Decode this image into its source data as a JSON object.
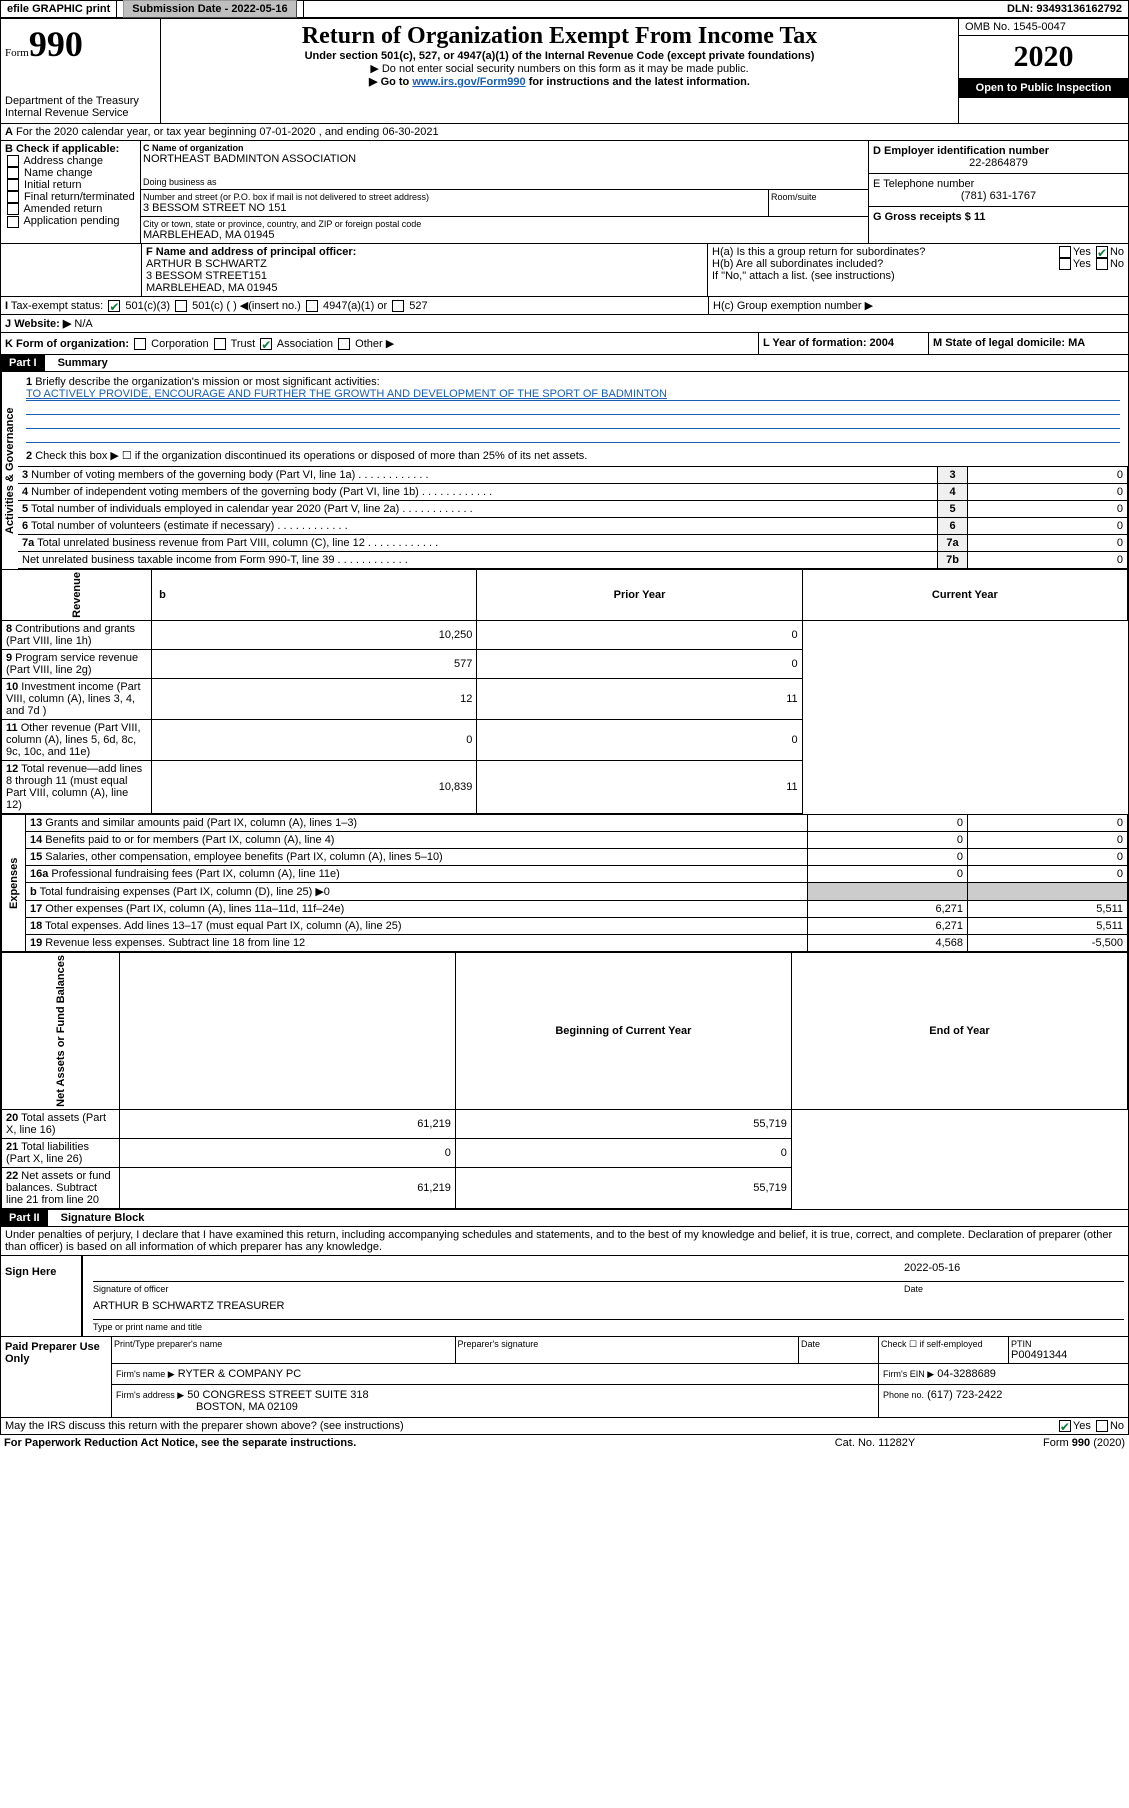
{
  "header": {
    "efile": "efile GRAPHIC print",
    "submission_label": "Submission Date - 2022-05-16",
    "dln": "DLN: 93493136162792"
  },
  "form": {
    "form_label": "Form",
    "form_num": "990",
    "title": "Return of Organization Exempt From Income Tax",
    "subtitle": "Under section 501(c), 527, or 4947(a)(1) of the Internal Revenue Code (except private foundations)",
    "warn1": "▶ Do not enter social security numbers on this form as it may be made public.",
    "warn2_pre": "▶ Go to ",
    "warn2_link": "www.irs.gov/Form990",
    "warn2_post": " for instructions and the latest information.",
    "dept": "Department of the Treasury",
    "irs": "Internal Revenue Service",
    "omb": "OMB No. 1545-0047",
    "year": "2020",
    "open_public": "Open to Public Inspection"
  },
  "A": {
    "line": "For the 2020 calendar year, or tax year beginning 07-01-2020    , and ending 06-30-2021"
  },
  "B": {
    "label": "B Check if applicable:",
    "opts": [
      "Address change",
      "Name change",
      "Initial return",
      "Final return/terminated",
      "Amended return",
      "Application pending"
    ]
  },
  "C": {
    "name_label": "C Name of organization",
    "name": "NORTHEAST BADMINTON ASSOCIATION",
    "dba_label": "Doing business as",
    "street_label": "Number and street (or P.O. box if mail is not delivered to street address)",
    "room": "Room/suite",
    "street": "3 BESSOM STREET NO 151",
    "city_label": "City or town, state or province, country, and ZIP or foreign postal code",
    "city": "MARBLEHEAD, MA  01945"
  },
  "D": {
    "label": "D Employer identification number",
    "val": "22-2864879"
  },
  "E": {
    "label": "E Telephone number",
    "val": "(781) 631-1767"
  },
  "G": {
    "label": "G Gross receipts $ 11"
  },
  "F": {
    "label": "F  Name and address of principal officer:",
    "name": "ARTHUR B SCHWARTZ",
    "street": "3 BESSOM STREET151",
    "city": "MARBLEHEAD, MA  01945"
  },
  "H": {
    "a": "H(a)  Is this a group return for subordinates?",
    "b": "H(b)  Are all subordinates included?",
    "note": "If \"No,\" attach a list. (see instructions)",
    "c": "H(c)  Group exemption number ▶"
  },
  "I": {
    "label": "I",
    "text": "Tax-exempt status:",
    "opts": [
      "501(c)(3)",
      "501(c) (  ) ◀(insert no.)",
      "4947(a)(1) or",
      "527"
    ]
  },
  "J": {
    "label": "J",
    "text": "Website: ▶",
    "val": "N/A"
  },
  "K": {
    "label": "K Form of organization:",
    "opts": [
      "Corporation",
      "Trust",
      "Association",
      "Other ▶"
    ]
  },
  "L": {
    "label": "L Year of formation: 2004"
  },
  "M": {
    "label": "M State of legal domicile: MA"
  },
  "part1": {
    "header": "Part I",
    "title": "Summary",
    "line1": "Briefly describe the organization's mission or most significant activities:",
    "mission": "TO ACTIVELY PROVIDE, ENCOURAGE AND FURTHER THE GROWTH AND DEVELOPMENT OF THE SPORT OF BADMINTON",
    "line2": "Check this box ▶ ☐  if the organization discontinued its operations or disposed of more than 25% of its net assets.",
    "rows_top": [
      {
        "n": "3",
        "label": "Number of voting members of the governing body (Part VI, line 1a)",
        "box": "3",
        "val": "0"
      },
      {
        "n": "4",
        "label": "Number of independent voting members of the governing body (Part VI, line 1b)",
        "box": "4",
        "val": "0"
      },
      {
        "n": "5",
        "label": "Total number of individuals employed in calendar year 2020 (Part V, line 2a)",
        "box": "5",
        "val": "0"
      },
      {
        "n": "6",
        "label": "Total number of volunteers (estimate if necessary)",
        "box": "6",
        "val": "0"
      },
      {
        "n": "7a",
        "label": "Total unrelated business revenue from Part VIII, column (C), line 12",
        "box": "7a",
        "val": "0"
      },
      {
        "n": "",
        "label": "Net unrelated business taxable income from Form 990-T, line 39",
        "box": "7b",
        "val": "0"
      }
    ],
    "col_b": "b",
    "prior": "Prior Year",
    "current": "Current Year",
    "begin": "Beginning of Current Year",
    "end": "End of Year",
    "rev_rows": [
      {
        "n": "8",
        "label": "Contributions and grants (Part VIII, line 1h)",
        "py": "10,250",
        "cy": "0"
      },
      {
        "n": "9",
        "label": "Program service revenue (Part VIII, line 2g)",
        "py": "577",
        "cy": "0"
      },
      {
        "n": "10",
        "label": "Investment income (Part VIII, column (A), lines 3, 4, and 7d )",
        "py": "12",
        "cy": "11"
      },
      {
        "n": "11",
        "label": "Other revenue (Part VIII, column (A), lines 5, 6d, 8c, 9c, 10c, and 11e)",
        "py": "0",
        "cy": "0"
      },
      {
        "n": "12",
        "label": "Total revenue—add lines 8 through 11 (must equal Part VIII, column (A), line 12)",
        "py": "10,839",
        "cy": "11"
      }
    ],
    "exp_rows": [
      {
        "n": "13",
        "label": "Grants and similar amounts paid (Part IX, column (A), lines 1–3)",
        "py": "0",
        "cy": "0"
      },
      {
        "n": "14",
        "label": "Benefits paid to or for members (Part IX, column (A), line 4)",
        "py": "0",
        "cy": "0"
      },
      {
        "n": "15",
        "label": "Salaries, other compensation, employee benefits (Part IX, column (A), lines 5–10)",
        "py": "0",
        "cy": "0"
      },
      {
        "n": "16a",
        "label": "Professional fundraising fees (Part IX, column (A), line 11e)",
        "py": "0",
        "cy": "0"
      },
      {
        "n": "b",
        "label": "Total fundraising expenses (Part IX, column (D), line 25) ▶0",
        "py": "",
        "cy": "",
        "gray": true
      },
      {
        "n": "17",
        "label": "Other expenses (Part IX, column (A), lines 11a–11d, 11f–24e)",
        "py": "6,271",
        "cy": "5,511"
      },
      {
        "n": "18",
        "label": "Total expenses. Add lines 13–17 (must equal Part IX, column (A), line 25)",
        "py": "6,271",
        "cy": "5,511"
      },
      {
        "n": "19",
        "label": "Revenue less expenses. Subtract line 18 from line 12",
        "py": "4,568",
        "cy": "-5,500"
      }
    ],
    "net_rows": [
      {
        "n": "20",
        "label": "Total assets (Part X, line 16)",
        "py": "61,219",
        "cy": "55,719"
      },
      {
        "n": "21",
        "label": "Total liabilities (Part X, line 26)",
        "py": "0",
        "cy": "0"
      },
      {
        "n": "22",
        "label": "Net assets or fund balances. Subtract line 21 from line 20",
        "py": "61,219",
        "cy": "55,719"
      }
    ],
    "vert_gov": "Activities & Governance",
    "vert_rev": "Revenue",
    "vert_exp": "Expenses",
    "vert_net": "Net Assets or Fund Balances"
  },
  "part2": {
    "header": "Part II",
    "title": "Signature Block",
    "penalty": "Under penalties of perjury, I declare that I have examined this return, including accompanying schedules and statements, and to the best of my knowledge and belief, it is true, correct, and complete. Declaration of preparer (other than officer) is based on all information of which preparer has any knowledge.",
    "sign_here": "Sign Here",
    "sig_officer": "Signature of officer",
    "date": "Date",
    "date_val": "2022-05-16",
    "officer": "ARTHUR B SCHWARTZ  TREASURER",
    "type_name": "Type or print name and title",
    "paid": "Paid Preparer Use Only",
    "prep_name_label": "Print/Type preparer's name",
    "prep_sig_label": "Preparer's signature",
    "check_self": "Check ☐ if self-employed",
    "ptin_label": "PTIN",
    "ptin": "P00491344",
    "firm_name_label": "Firm's name   ▶",
    "firm_name": "RYTER & COMPANY PC",
    "firm_ein_label": "Firm's EIN ▶",
    "firm_ein": "04-3288689",
    "firm_addr_label": "Firm's address ▶",
    "firm_addr1": "50 CONGRESS STREET SUITE 318",
    "firm_addr2": "BOSTON, MA  02109",
    "phone_label": "Phone no.",
    "phone": "(617) 723-2422",
    "discuss": "May the IRS discuss this return with the preparer shown above? (see instructions)",
    "paperwork": "For Paperwork Reduction Act Notice, see the separate instructions.",
    "catno": "Cat. No. 11282Y",
    "form_foot": "Form 990 (2020)"
  },
  "yes": "Yes",
  "no": "No"
}
